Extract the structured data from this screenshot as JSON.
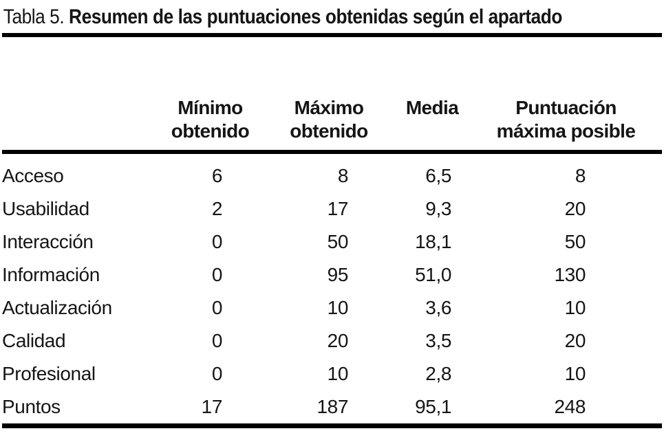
{
  "page": {
    "background_color": "#ffffff",
    "text_color": "#151515",
    "rule_color": "#000000"
  },
  "title": {
    "prefix": "Tabla 5. ",
    "emphasis": "Resumen de las puntuaciones obtenidas según el apartado"
  },
  "table": {
    "columns": [
      "Mínimo\nobtenido",
      "Máximo\nobtenido",
      "Media",
      "Puntuación\nmáxima posible"
    ],
    "rows": [
      {
        "label": "Acceso",
        "cells": [
          "6",
          "8",
          "6,5",
          "8"
        ]
      },
      {
        "label": "Usabilidad",
        "cells": [
          "2",
          "17",
          "9,3",
          "20"
        ]
      },
      {
        "label": "Interacción",
        "cells": [
          "0",
          "50",
          "18,1",
          "50"
        ]
      },
      {
        "label": "Información",
        "cells": [
          "0",
          "95",
          "51,0",
          "130"
        ]
      },
      {
        "label": "Actualización",
        "cells": [
          "0",
          "10",
          "3,6",
          "10"
        ]
      },
      {
        "label": "Calidad",
        "cells": [
          "0",
          "20",
          "3,5",
          "20"
        ]
      },
      {
        "label": "Profesional",
        "cells": [
          "0",
          "10",
          "2,8",
          "10"
        ]
      },
      {
        "label": "Puntos",
        "cells": [
          "17",
          "187",
          "95,1",
          "248"
        ]
      }
    ]
  }
}
